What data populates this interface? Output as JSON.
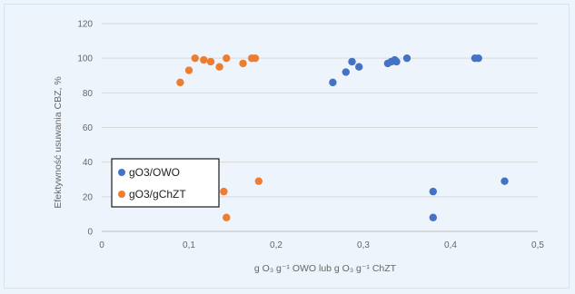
{
  "chart_data": {
    "type": "scatter",
    "title": "",
    "xlabel": "g O₃ g⁻¹ OWO lub g O₃ g⁻¹ ChZT",
    "ylabel": "Efektywność usuwania CBZ, %",
    "xlim": [
      0,
      0.5
    ],
    "ylim": [
      0,
      120
    ],
    "x_ticks": [
      "0",
      "0,1",
      "0,2",
      "0,3",
      "0,4",
      "0,5"
    ],
    "y_ticks": [
      "0",
      "20",
      "40",
      "60",
      "80",
      "100",
      "120"
    ],
    "grid": "horizontal",
    "legend_position": "bottom-left",
    "series": [
      {
        "name": "gO3/OWO",
        "color": "#4472c4",
        "points": [
          [
            0.265,
            86
          ],
          [
            0.28,
            92
          ],
          [
            0.287,
            98
          ],
          [
            0.295,
            95
          ],
          [
            0.328,
            97
          ],
          [
            0.332,
            98
          ],
          [
            0.336,
            99
          ],
          [
            0.338,
            98
          ],
          [
            0.35,
            100
          ],
          [
            0.428,
            100
          ],
          [
            0.432,
            100
          ],
          [
            0.38,
            23
          ],
          [
            0.38,
            8
          ],
          [
            0.462,
            29
          ]
        ]
      },
      {
        "name": "gO3/gChZT",
        "color": "#ed7d31",
        "points": [
          [
            0.09,
            86
          ],
          [
            0.1,
            93
          ],
          [
            0.107,
            100
          ],
          [
            0.117,
            99
          ],
          [
            0.125,
            98
          ],
          [
            0.135,
            95
          ],
          [
            0.143,
            100
          ],
          [
            0.162,
            97
          ],
          [
            0.172,
            100
          ],
          [
            0.176,
            100
          ],
          [
            0.14,
            23
          ],
          [
            0.143,
            8
          ],
          [
            0.18,
            29
          ]
        ]
      }
    ]
  }
}
